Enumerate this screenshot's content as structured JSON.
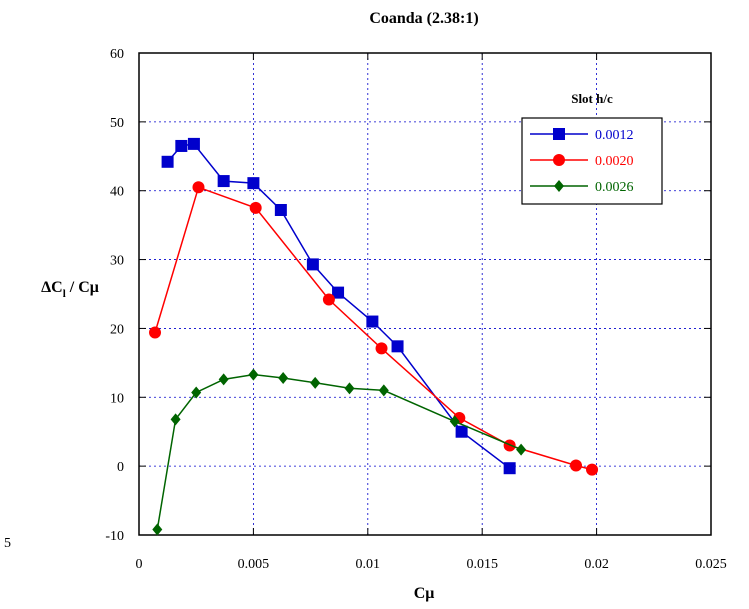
{
  "chart_data": {
    "type": "line",
    "title": "Coanda (2.38:1)",
    "xlabel": "Cμ",
    "ylabel": "ΔC_l / Cμ",
    "xlim": [
      0,
      0.025
    ],
    "ylim": [
      -10,
      60
    ],
    "xticks": [
      "0",
      "0.005",
      "0.01",
      "0.015",
      "0.02",
      "0.025"
    ],
    "yticks": [
      "-10",
      "0",
      "10",
      "20",
      "30",
      "40",
      "50",
      "60"
    ],
    "grid": true,
    "legend": {
      "title": "Slot h/c",
      "placement": "top-right"
    },
    "stray_label": "5",
    "series": [
      {
        "name": "0.0012",
        "color": "#0000cc",
        "marker": "square",
        "x": [
          0.00125,
          0.00185,
          0.0024,
          0.0037,
          0.005,
          0.0062,
          0.0076,
          0.0087,
          0.0102,
          0.0113,
          0.0141,
          0.0162
        ],
        "y": [
          44.2,
          46.5,
          46.8,
          41.4,
          41.1,
          37.2,
          29.3,
          25.2,
          21.0,
          17.4,
          5.0,
          -0.3
        ]
      },
      {
        "name": "0.0020",
        "color": "#ff0000",
        "marker": "circle",
        "x": [
          0.0007,
          0.0026,
          0.0051,
          0.0083,
          0.0106,
          0.014,
          0.0162,
          0.0191,
          0.0198
        ],
        "y": [
          19.4,
          40.5,
          37.5,
          24.2,
          17.1,
          7.0,
          3.0,
          0.1,
          -0.5
        ]
      },
      {
        "name": "0.0026",
        "color": "#006400",
        "marker": "diamond",
        "x": [
          0.0008,
          0.0016,
          0.0025,
          0.0037,
          0.005,
          0.0063,
          0.0077,
          0.0092,
          0.0107,
          0.0138,
          0.0167
        ],
        "y": [
          -9.2,
          6.8,
          10.7,
          12.6,
          13.3,
          12.8,
          12.1,
          11.3,
          11.0,
          6.5,
          2.4
        ]
      }
    ]
  }
}
